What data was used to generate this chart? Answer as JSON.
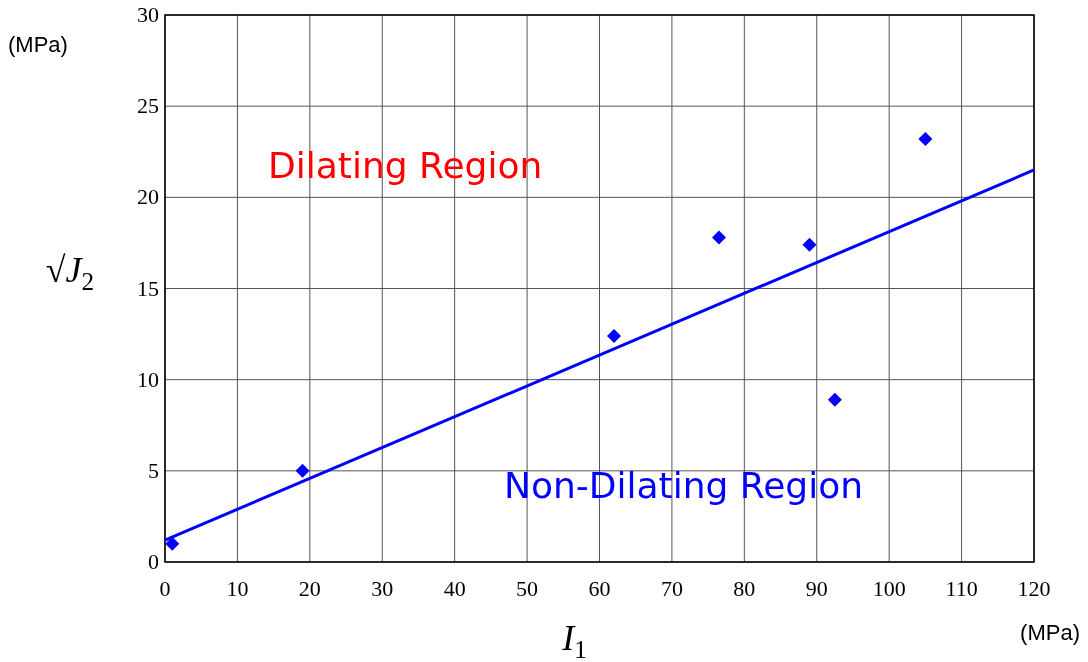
{
  "chart_data": {
    "type": "scatter",
    "xlabel": "I$_{1}$",
    "ylabel": "√J$_{2}$",
    "annotations": [
      "(MPa)",
      "(MPa)",
      "Dilating Region",
      "Non-Dilating Region"
    ],
    "series": [
      {
        "color": "#0000ff",
        "marker": "diamond",
        "x": [
          1,
          19,
          62,
          76.5,
          89,
          92.5,
          105
        ],
        "values": [
          1,
          5,
          12.4,
          17.8,
          17.4,
          8.9,
          23.2
        ]
      },
      {
        "type": "line",
        "color": "#0000ff",
        "marker": "none",
        "line_style": "solid",
        "x": [
          0,
          120
        ],
        "values": [
          1.2,
          21.5
        ]
      }
    ],
    "xlim": [
      0,
      120
    ],
    "xticks": [
      0,
      10,
      20,
      30,
      40,
      50,
      60,
      70,
      80,
      90,
      100,
      110,
      120
    ],
    "ylim": [
      0,
      30
    ],
    "yticks": [
      0,
      5,
      10,
      15,
      20,
      25,
      30
    ],
    "grid": true
  }
}
